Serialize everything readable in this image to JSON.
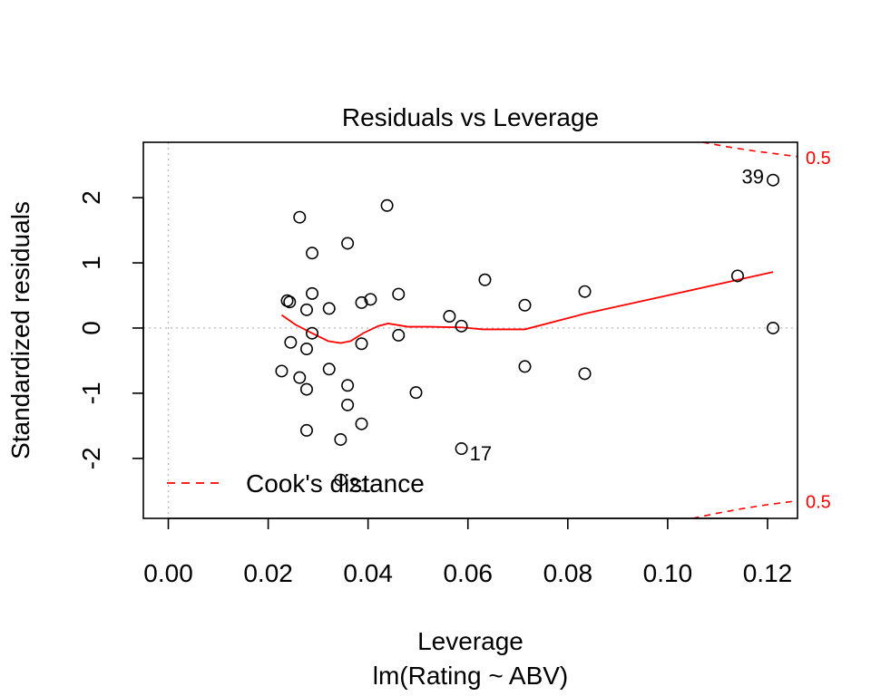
{
  "chart_data": {
    "type": "scatter",
    "title": "Residuals vs Leverage",
    "xlabel": "Leverage",
    "subtitle": "lm(Rating ~ ABV)",
    "ylabel": "Standardized residuals",
    "xlim": [
      -0.005,
      0.126
    ],
    "ylim": [
      -2.92,
      2.85
    ],
    "xticks": [
      0.0,
      0.02,
      0.04,
      0.06,
      0.08,
      0.1,
      0.12
    ],
    "xtick_labels": [
      "0.00",
      "0.02",
      "0.04",
      "0.06",
      "0.08",
      "0.10",
      "0.12"
    ],
    "yticks": [
      -2,
      -1,
      0,
      1,
      2
    ],
    "ytick_labels": [
      "-2",
      "-1",
      "0",
      "1",
      "2"
    ],
    "points": [
      {
        "x": 0.0227,
        "y": -0.66
      },
      {
        "x": 0.0238,
        "y": 0.42
      },
      {
        "x": 0.0243,
        "y": 0.4
      },
      {
        "x": 0.0245,
        "y": -0.22
      },
      {
        "x": 0.0263,
        "y": 1.7
      },
      {
        "x": 0.0263,
        "y": -0.76
      },
      {
        "x": 0.0277,
        "y": 0.28
      },
      {
        "x": 0.0277,
        "y": -0.32
      },
      {
        "x": 0.0277,
        "y": -0.94
      },
      {
        "x": 0.0277,
        "y": -1.57
      },
      {
        "x": 0.0288,
        "y": 1.15
      },
      {
        "x": 0.0288,
        "y": 0.53
      },
      {
        "x": 0.0288,
        "y": -0.08
      },
      {
        "x": 0.0322,
        "y": 0.3
      },
      {
        "x": 0.0322,
        "y": -0.63
      },
      {
        "x": 0.0345,
        "y": -1.71
      },
      {
        "x": 0.0345,
        "y": -2.33
      },
      {
        "x": 0.0359,
        "y": 1.3
      },
      {
        "x": 0.0359,
        "y": -0.88
      },
      {
        "x": 0.0359,
        "y": -1.18
      },
      {
        "x": 0.0387,
        "y": 0.39
      },
      {
        "x": 0.0387,
        "y": -0.24
      },
      {
        "x": 0.0387,
        "y": -1.47
      },
      {
        "x": 0.0405,
        "y": 0.44
      },
      {
        "x": 0.0438,
        "y": 1.88
      },
      {
        "x": 0.0461,
        "y": 0.52
      },
      {
        "x": 0.0461,
        "y": -0.11
      },
      {
        "x": 0.0496,
        "y": -0.99
      },
      {
        "x": 0.0563,
        "y": 0.18
      },
      {
        "x": 0.0587,
        "y": 0.03
      },
      {
        "x": 0.0587,
        "y": -1.85
      },
      {
        "x": 0.0634,
        "y": 0.74
      },
      {
        "x": 0.0714,
        "y": 0.35
      },
      {
        "x": 0.0714,
        "y": -0.59
      },
      {
        "x": 0.0834,
        "y": 0.56
      },
      {
        "x": 0.0834,
        "y": -0.7
      },
      {
        "x": 0.114,
        "y": 0.8
      },
      {
        "x": 0.1211,
        "y": 2.27
      },
      {
        "x": 0.1211,
        "y": 0.0
      }
    ],
    "point_labels": [
      {
        "text": "39",
        "x": 0.1211,
        "y": 2.27,
        "side": "left"
      },
      {
        "text": "17",
        "x": 0.0587,
        "y": -1.85,
        "side": "right"
      },
      {
        "text": "21",
        "x": 0.0345,
        "y": -2.33,
        "side": "right"
      }
    ],
    "smoother": {
      "name": "",
      "color": "#ff0000",
      "x": [
        0.0227,
        0.0255,
        0.0288,
        0.032,
        0.0345,
        0.0365,
        0.039,
        0.042,
        0.044,
        0.048,
        0.052,
        0.0587,
        0.063,
        0.0714,
        0.0834,
        0.1,
        0.1211
      ],
      "y": [
        0.2,
        0.05,
        -0.08,
        -0.2,
        -0.23,
        -0.2,
        -0.08,
        0.03,
        0.07,
        0.02,
        0.02,
        0.01,
        -0.02,
        -0.02,
        0.22,
        0.5,
        0.86
      ]
    },
    "cooks_contours": [
      {
        "level": "0.5",
        "color": "#ff0000",
        "x": [
          0.107,
          0.112,
          0.117,
          0.122,
          0.126
        ],
        "y": [
          2.85,
          2.78,
          2.72,
          2.67,
          2.63
        ]
      },
      {
        "level": "0.5",
        "color": "#ff0000",
        "x": [
          0.105,
          0.11,
          0.115,
          0.12,
          0.126
        ],
        "y": [
          -2.92,
          -2.84,
          -2.77,
          -2.71,
          -2.65
        ]
      }
    ],
    "legend": {
      "label": "Cook's distance",
      "position": "bottom-left",
      "line_style": "dashed",
      "color": "#ff0000"
    },
    "reference_lines": {
      "x0": 0,
      "y0": 0,
      "color": "#bebebe",
      "style": "dotted"
    },
    "grid": false
  }
}
